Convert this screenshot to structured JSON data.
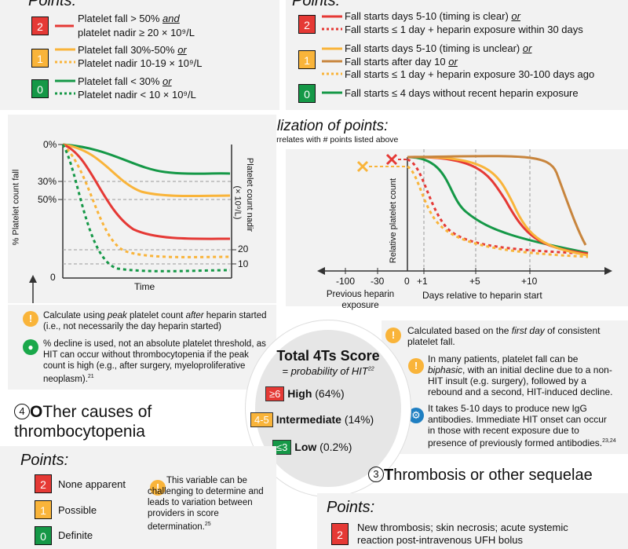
{
  "platelet": {
    "title": "Points:",
    "rows": [
      {
        "score": "2",
        "line1_a": "Platelet fall > 50% ",
        "line1_b": "and",
        "line2": "platelet nadir ≥ 20 × 10⁹/L"
      },
      {
        "score": "1",
        "line1_a": "Platelet fall 30%-50% ",
        "line1_b": "or",
        "line2": "Platelet nadir 10-19 × 10⁹/L"
      },
      {
        "score": "0",
        "line1_a": "Platelet fall < 30% ",
        "line1_b": "or",
        "line2": "Platelet nadir < 10 × 10⁹/L"
      }
    ]
  },
  "timing": {
    "title": "Points:",
    "rows": [
      {
        "score": "2",
        "lines": [
          {
            "a": "Fall starts days 5-10 (timing is clear) ",
            "b": "or"
          },
          {
            "a": "Fall starts ≤ 1 day + heparin exposure within 30 days",
            "b": ""
          }
        ]
      },
      {
        "score": "1",
        "lines": [
          {
            "a": "Fall starts days 5-10 (timing is unclear) ",
            "b": "or"
          },
          {
            "a": "Fall starts after day 10 ",
            "b": "or"
          },
          {
            "a": "Fall starts ≤ 1 day + heparin exposure 30-100 days ago",
            "b": ""
          }
        ]
      },
      {
        "score": "0",
        "lines": [
          {
            "a": "Fall starts ≤ 4 days without recent heparin exposure",
            "b": ""
          }
        ]
      }
    ]
  },
  "visualization": {
    "title": "Visualization of points:",
    "subtitle": "Line color correlates with # points listed above"
  },
  "left_chart": {
    "y_label": "% Platelet count fall",
    "y2_label": "Platelet count nadir",
    "y2_unit": "(× 10⁹/L)",
    "x_label": "Time",
    "ticks_left": [
      "0%",
      "30%",
      "50%",
      "0"
    ],
    "ticks_right": [
      "20",
      "10"
    ]
  },
  "right_chart": {
    "y_label": "Relative platelet count",
    "x_ticks": [
      "-100",
      "-30",
      "0",
      "+1",
      "+5",
      "+10"
    ],
    "prev_label": "Previous heparin exposure",
    "x_label": "Days relative to heparin start"
  },
  "notes_left": {
    "calc_a": "Calculate using ",
    "calc_b": "peak",
    "calc_c": " platelet count ",
    "calc_d": "after",
    "calc_e": " heparin started (i.e., not necessarily the day heparin started)",
    "decline": "% decline is used, not an absolute platelet threshold, as HIT can occur without thrombocytopenia if the peak count is high (e.g., after surgery, myeloproliferative neoplasm).",
    "decline_ref": "21"
  },
  "notes_right": {
    "first_a": "Calculated based on the ",
    "first_b": "first day",
    "first_c": " of consistent platelet fall.",
    "biphasic_a": "In many patients, platelet fall can be ",
    "biphasic_b": "biphasic",
    "biphasic_c": ", with an initial decline due to a non-HIT insult (e.g. surgery), followed by a rebound and a second, HIT-induced decline.",
    "igg": "It takes 5-10 days to produce new IgG antibodies. Immediate HIT onset can occur in those with recent exposure due to presence of previously formed antibodies.",
    "igg_ref": "23,24"
  },
  "total": {
    "title": "Total 4Ts Score",
    "subtitle": "= probability of HIT",
    "subtitle_ref": "22",
    "rows": [
      {
        "badge": "≥6",
        "label": "High",
        "pct": "(64%)",
        "color": "#e53935"
      },
      {
        "badge": "4-5",
        "label": "Intermediate",
        "pct": "(14%)",
        "color": "#f9b43a"
      },
      {
        "badge": "≤3",
        "label": "Low",
        "pct": "(0.2%)",
        "color": "#159847"
      }
    ]
  },
  "other": {
    "num": "4",
    "head_letter": "O",
    "head_rest": "Ther causes of",
    "head_line2": "thrombocytopenia",
    "title": "Points:",
    "rows": [
      {
        "score": "2",
        "label": "None apparent"
      },
      {
        "score": "1",
        "label": "Possible"
      },
      {
        "score": "0",
        "label": "Definite"
      }
    ],
    "note": "This variable can be challenging to determine and leads to variation between providers in score determination.",
    "note_ref": "25"
  },
  "thrombosis": {
    "num": "3",
    "head_letter": "T",
    "head_rest": "hrombosis or other sequelae",
    "title": "Points:",
    "row": {
      "score": "2",
      "label": "New thrombosis; skin necrosis; acute systemic reaction post-intravenous UFH bolus"
    }
  },
  "colors": {
    "red": "#e53935",
    "yellow": "#f9b43a",
    "green": "#159847",
    "brown": "#c8853d"
  }
}
